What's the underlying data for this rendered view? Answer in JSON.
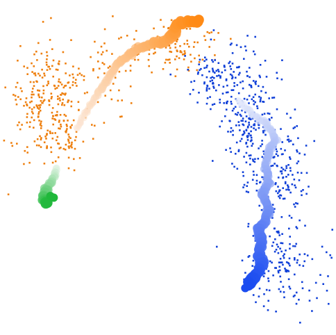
{
  "chart_data": {
    "type": "scatter",
    "title": "",
    "xlabel": "",
    "ylabel": "",
    "grid": false,
    "axes_visible": false,
    "legend": "none",
    "colors": {
      "orange_points": "#ee7f0e",
      "blue_points": "#1040d8",
      "orange_trajectory_start": "#fbe6d6",
      "orange_trajectory_end": "#ff8a14",
      "blue_trajectory_start": "#e8ecfb",
      "blue_trajectory_end": "#1b4cf0",
      "green_trajectory_start": "#eaf6ec",
      "green_trajectory_end": "#1fb83a"
    },
    "point_clouds": [
      {
        "name": "",
        "color": "#ee7f0e",
        "approx_count": 450,
        "regions": [
          {
            "cx": 0.14,
            "cy": 0.3,
            "sx": 0.06,
            "sy": 0.09,
            "count": 260
          },
          {
            "cx": 0.2,
            "cy": 0.42,
            "sx": 0.025,
            "sy": 0.05,
            "count": 40
          },
          {
            "cx": 0.33,
            "cy": 0.2,
            "sx": 0.05,
            "sy": 0.06,
            "count": 50
          },
          {
            "cx": 0.5,
            "cy": 0.14,
            "sx": 0.07,
            "sy": 0.04,
            "count": 100
          }
        ]
      },
      {
        "name": "",
        "color": "#1040d8",
        "approx_count": 620,
        "regions": [
          {
            "cx": 0.65,
            "cy": 0.22,
            "sx": 0.05,
            "sy": 0.05,
            "count": 120
          },
          {
            "cx": 0.74,
            "cy": 0.36,
            "sx": 0.045,
            "sy": 0.08,
            "count": 200
          },
          {
            "cx": 0.83,
            "cy": 0.55,
            "sx": 0.05,
            "sy": 0.09,
            "count": 180
          },
          {
            "cx": 0.84,
            "cy": 0.8,
            "sx": 0.06,
            "sy": 0.06,
            "count": 120
          }
        ]
      }
    ],
    "trajectories": [
      {
        "name": "",
        "color_start": "#fbe6d6",
        "color_end": "#ff8a14",
        "points": [
          [
            0.23,
            0.385
          ],
          [
            0.26,
            0.33
          ],
          [
            0.29,
            0.28
          ],
          [
            0.31,
            0.255
          ],
          [
            0.33,
            0.22
          ],
          [
            0.35,
            0.19
          ],
          [
            0.37,
            0.175
          ],
          [
            0.4,
            0.15
          ],
          [
            0.43,
            0.14
          ],
          [
            0.46,
            0.125
          ],
          [
            0.48,
            0.13
          ],
          [
            0.51,
            0.11
          ],
          [
            0.52,
            0.095
          ],
          [
            0.53,
            0.07
          ],
          [
            0.56,
            0.065
          ],
          [
            0.59,
            0.065
          ]
        ]
      },
      {
        "name": "",
        "color_start": "#e8ecfb",
        "color_end": "#1b4cf0",
        "points": [
          [
            0.71,
            0.3
          ],
          [
            0.74,
            0.33
          ],
          [
            0.78,
            0.36
          ],
          [
            0.81,
            0.39
          ],
          [
            0.82,
            0.42
          ],
          [
            0.8,
            0.45
          ],
          [
            0.79,
            0.5
          ],
          [
            0.8,
            0.55
          ],
          [
            0.78,
            0.58
          ],
          [
            0.8,
            0.62
          ],
          [
            0.79,
            0.66
          ],
          [
            0.77,
            0.68
          ],
          [
            0.78,
            0.72
          ],
          [
            0.77,
            0.76
          ],
          [
            0.78,
            0.79
          ],
          [
            0.76,
            0.82
          ],
          [
            0.74,
            0.85
          ]
        ]
      },
      {
        "name": "",
        "color_start": "#eaf6ec",
        "color_end": "#1fb83a",
        "points": [
          [
            0.17,
            0.5
          ],
          [
            0.16,
            0.53
          ],
          [
            0.14,
            0.56
          ],
          [
            0.13,
            0.59
          ],
          [
            0.14,
            0.61
          ]
        ]
      }
    ],
    "end_markers": [
      {
        "name": "",
        "color": "#1b4cf0",
        "points": [
          [
            0.73,
            0.86
          ],
          [
            0.74,
            0.855
          ]
        ]
      },
      {
        "name": "",
        "color": "#1fb83a",
        "points": [
          [
            0.15,
            0.585
          ],
          [
            0.16,
            0.59
          ]
        ]
      }
    ]
  }
}
